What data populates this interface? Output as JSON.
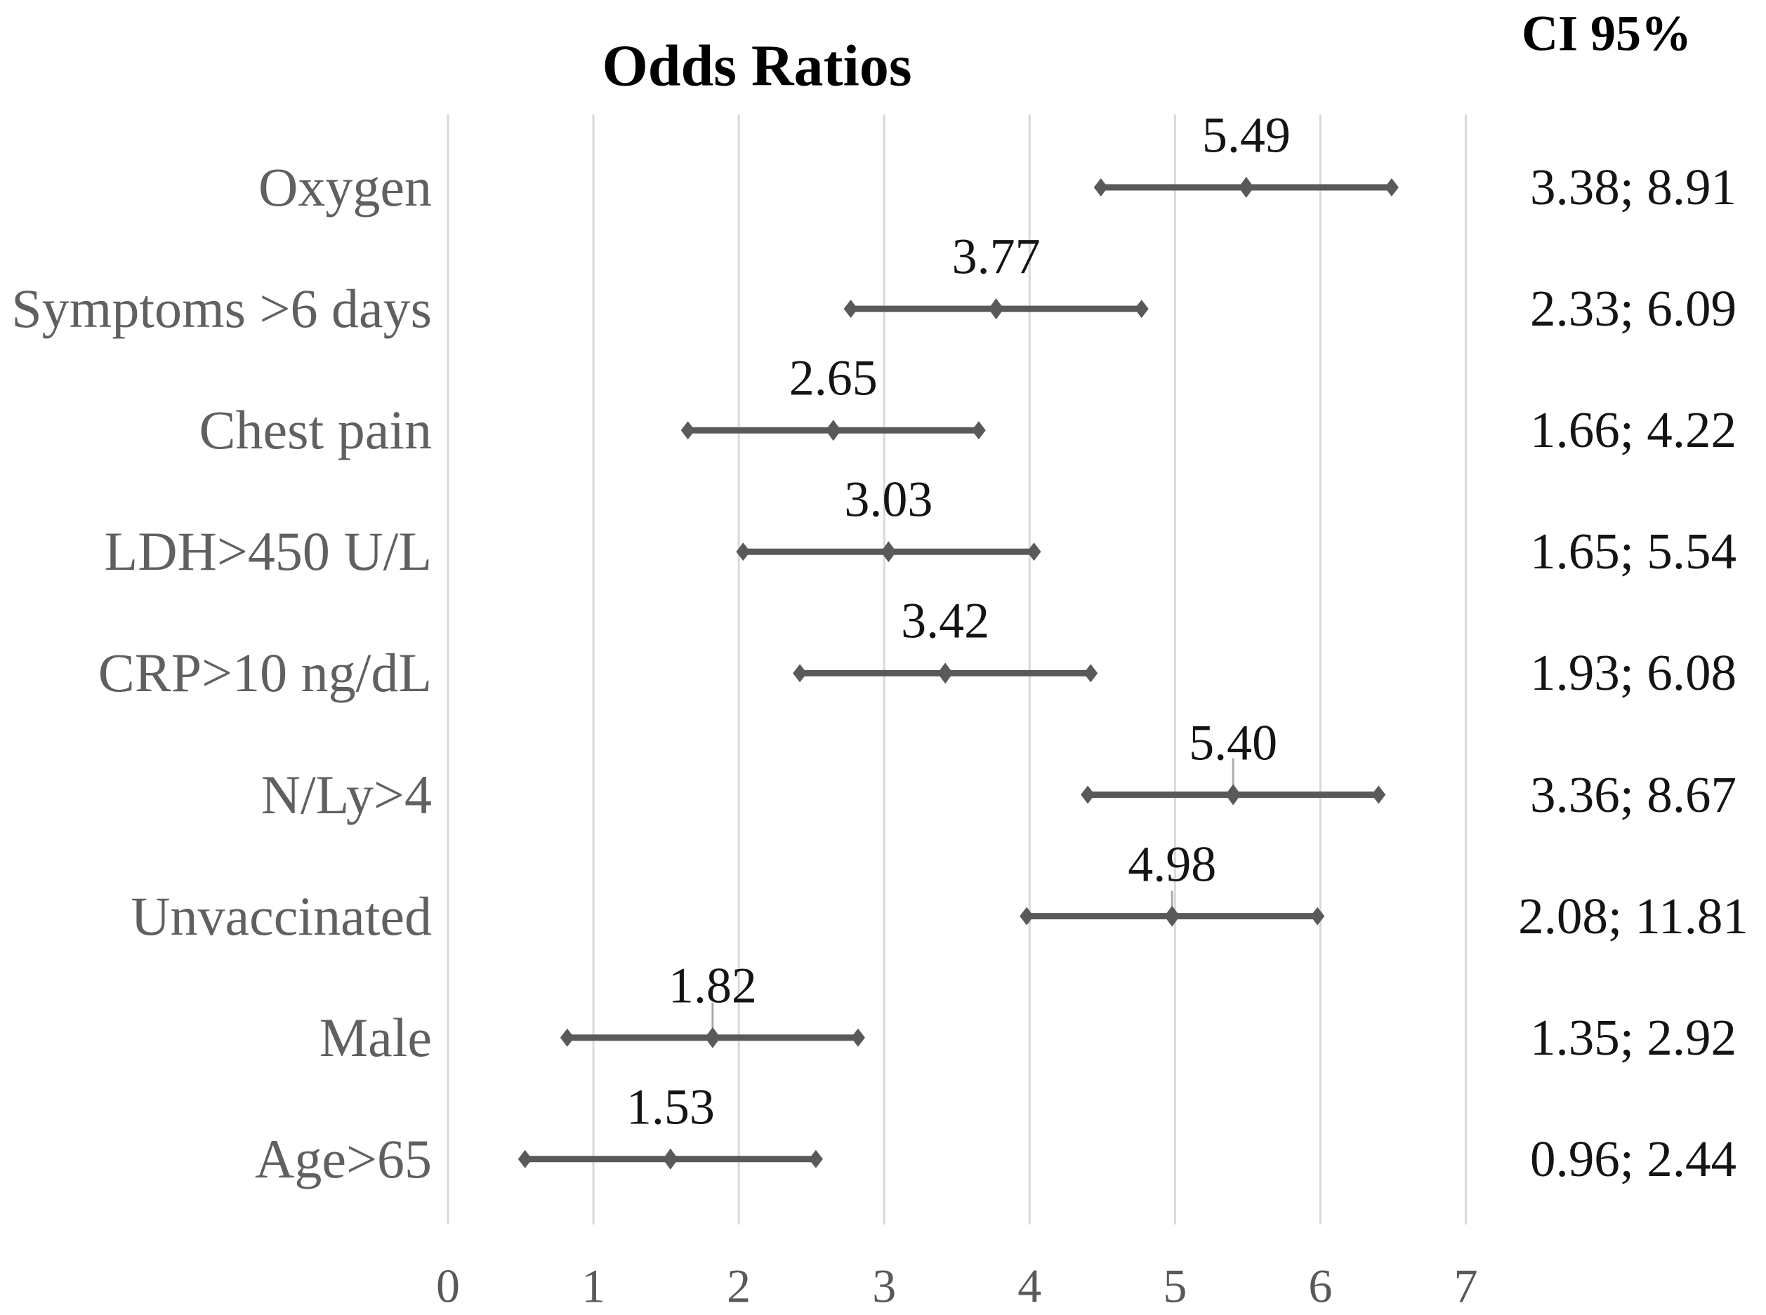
{
  "title": "Odds Ratios",
  "ci_header": "CI 95%",
  "chart_data": {
    "type": "scatter",
    "subtype": "horizontal-forest-plot",
    "title": "Odds Ratios",
    "ci_column_header": "CI 95%",
    "xlim": [
      0,
      7
    ],
    "x_ticks": [
      "0",
      "1",
      "2",
      "3",
      "4",
      "5",
      "6",
      "7"
    ],
    "grid": true,
    "legend": "none",
    "whisker_half_width": 1.0,
    "rows": [
      {
        "label": "Oxygen",
        "odds_ratio": 5.49,
        "value_label": "5.49",
        "ci_label": "3.38; 8.91",
        "ci_low": 3.38,
        "ci_high": 8.91
      },
      {
        "label": "Symptoms >6 days",
        "odds_ratio": 3.77,
        "value_label": "3.77",
        "ci_label": "2.33; 6.09",
        "ci_low": 2.33,
        "ci_high": 6.09
      },
      {
        "label": "Chest pain",
        "odds_ratio": 2.65,
        "value_label": "2.65",
        "ci_label": "1.66; 4.22",
        "ci_low": 1.66,
        "ci_high": 4.22
      },
      {
        "label": "LDH>450 U/L",
        "odds_ratio": 3.03,
        "value_label": "3.03",
        "ci_label": "1.65; 5.54",
        "ci_low": 1.65,
        "ci_high": 5.54
      },
      {
        "label": "CRP>10 ng/dL",
        "odds_ratio": 3.42,
        "value_label": "3.42",
        "ci_label": "1.93; 6.08",
        "ci_low": 1.93,
        "ci_high": 6.08
      },
      {
        "label": "N/Ly>4",
        "odds_ratio": 5.4,
        "value_label": "5.40",
        "ci_label": "3.36; 8.67",
        "ci_low": 3.36,
        "ci_high": 8.67
      },
      {
        "label": "Unvaccinated",
        "odds_ratio": 4.98,
        "value_label": "4.98",
        "ci_label": "2.08; 11.81",
        "ci_low": 2.08,
        "ci_high": 11.81
      },
      {
        "label": "Male",
        "odds_ratio": 1.82,
        "value_label": "1.82",
        "ci_label": "1.35; 2.92",
        "ci_low": 1.35,
        "ci_high": 2.92
      },
      {
        "label": "Age>65",
        "odds_ratio": 1.53,
        "value_label": "1.53",
        "ci_label": "0.96; 2.44",
        "ci_low": 0.96,
        "ci_high": 2.44
      }
    ],
    "colors": {
      "bar": "#595959",
      "grid": "#d9d9d9",
      "category_label": "#606060",
      "tick_label": "#595959",
      "value_label": "#141414",
      "title": "#000000"
    }
  }
}
